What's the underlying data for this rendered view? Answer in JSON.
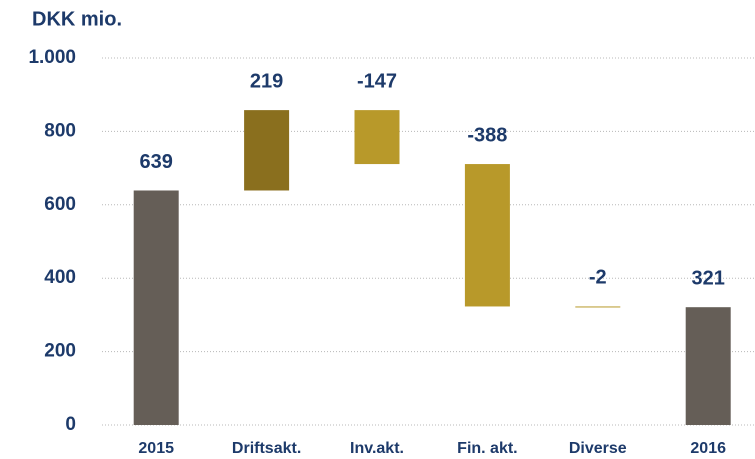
{
  "chart_data": {
    "type": "waterfall",
    "title": "DKK mio.",
    "categories": [
      "2015",
      "Driftsakt.",
      "Inv.akt.",
      "Fin. akt.",
      "Diverse",
      "2016"
    ],
    "values": [
      639,
      219,
      -147,
      -388,
      -2,
      321
    ],
    "is_total": [
      true,
      false,
      false,
      false,
      false,
      true
    ],
    "colors": {
      "total": "#655e57",
      "increase": "#8a6f1e",
      "decrease": "#b8992a"
    },
    "ylim": [
      0,
      1000
    ],
    "yticks": [
      0,
      200,
      400,
      600,
      800,
      {
        "value": 1000,
        "label": "1.000"
      }
    ],
    "grid": true
  }
}
